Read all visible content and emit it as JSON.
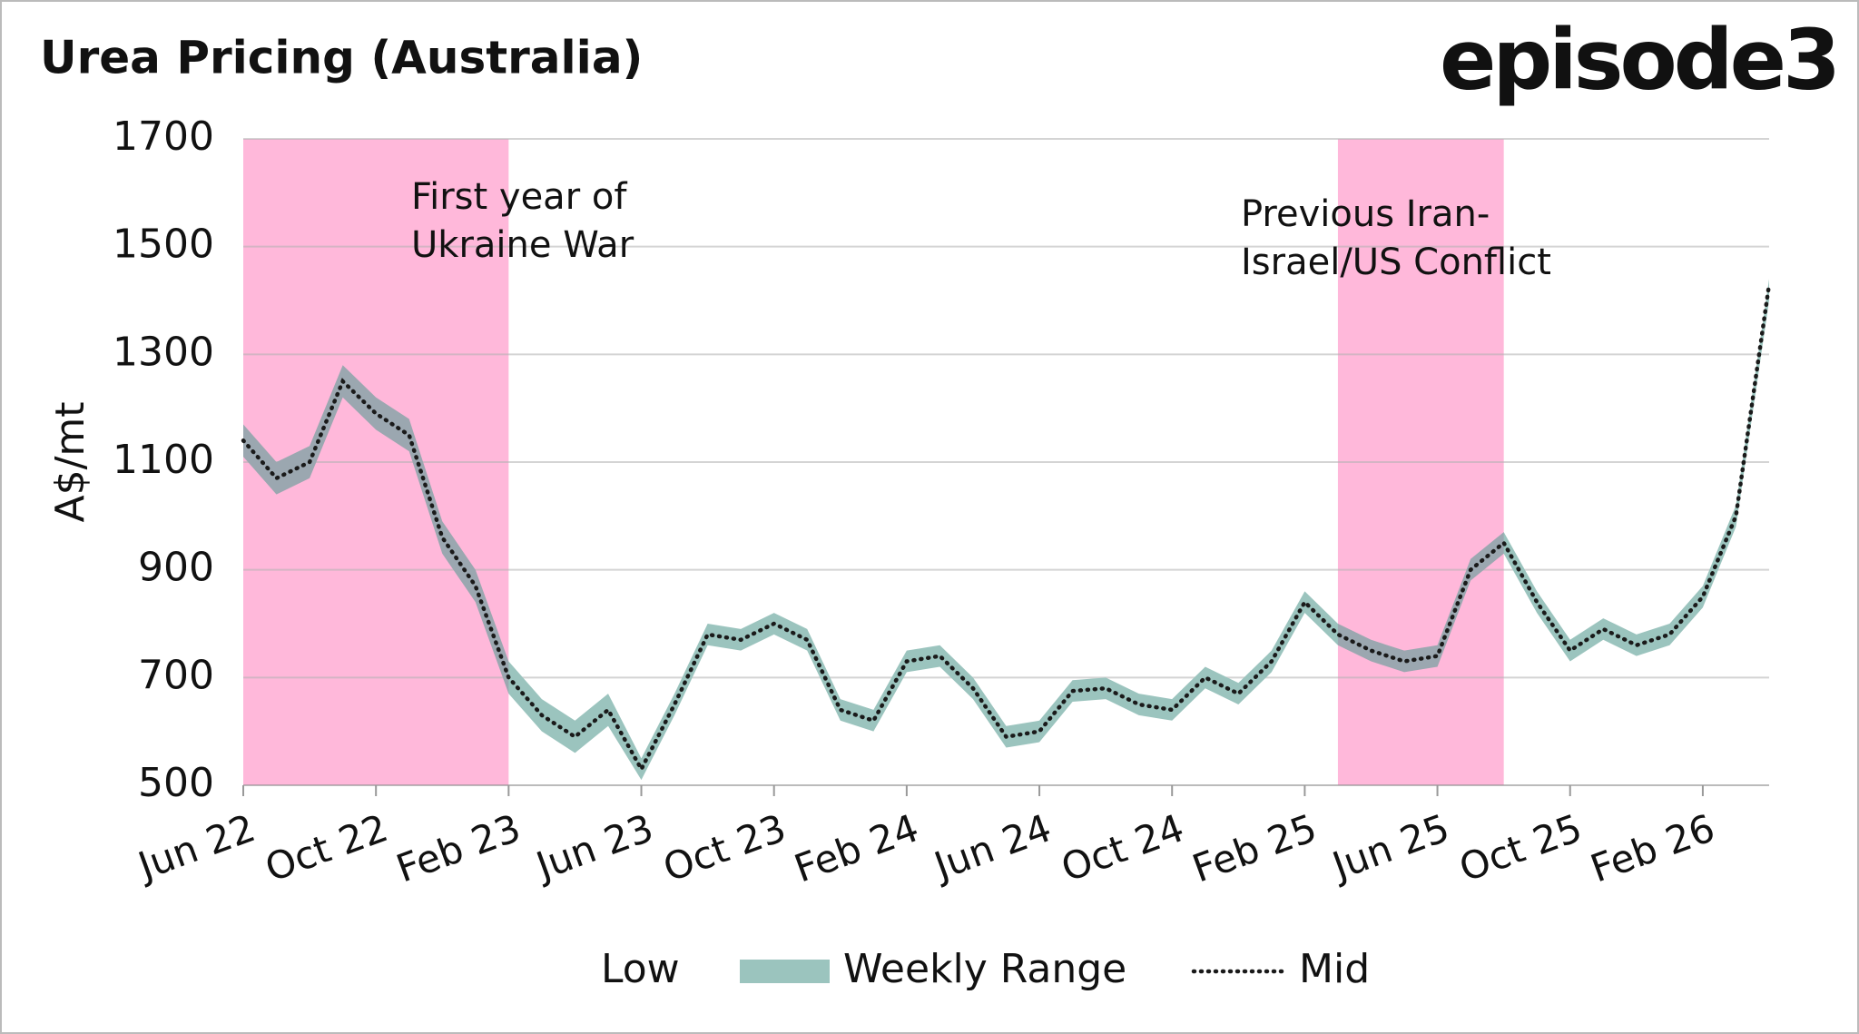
{
  "chart_data": {
    "type": "range-area",
    "title": "Urea Pricing (Australia)",
    "brand": "episode3",
    "y_label": "A$/mt",
    "x": [
      "Jun 22",
      "Jul 22",
      "Aug 22",
      "Sep 22",
      "Oct 22",
      "Nov 22",
      "Dec 22",
      "Jan 23",
      "Feb 23",
      "Mar 23",
      "Apr 23",
      "May 23",
      "Jun 23",
      "Jul 23",
      "Aug 23",
      "Sep 23",
      "Oct 23",
      "Nov 23",
      "Dec 23",
      "Jan 24",
      "Feb 24",
      "Mar 24",
      "Apr 24",
      "May 24",
      "Jun 24",
      "Jul 24",
      "Aug 24",
      "Sep 24",
      "Oct 24",
      "Nov 24",
      "Dec 24",
      "Jan 25",
      "Feb 25",
      "Mar 25",
      "Apr 25",
      "May 25",
      "Jun 25",
      "Jul 25",
      "Aug 25",
      "Sep 25",
      "Oct 25",
      "Nov 25",
      "Dec 25",
      "Jan 26",
      "Feb 26",
      "Mar 26",
      "Apr 26"
    ],
    "xticks": [
      "Jun 22",
      "Oct 22",
      "Feb 23",
      "Jun 23",
      "Oct 23",
      "Feb 24",
      "Jun 24",
      "Oct 24",
      "Feb 25",
      "Jun 25",
      "Oct 25",
      "Feb 26"
    ],
    "ylim": [
      500,
      1700
    ],
    "yticks": [
      500,
      700,
      900,
      1100,
      1300,
      1500,
      1700
    ],
    "grid": true,
    "series": [
      {
        "name": "Low",
        "values": [
          1110,
          1040,
          1070,
          1220,
          1160,
          1120,
          930,
          840,
          670,
          600,
          560,
          610,
          510,
          630,
          760,
          750,
          780,
          750,
          620,
          600,
          710,
          720,
          660,
          570,
          580,
          655,
          660,
          630,
          620,
          680,
          650,
          710,
          820,
          760,
          730,
          710,
          720,
          880,
          930,
          820,
          730,
          770,
          740,
          760,
          830,
          980,
          1400
        ]
      },
      {
        "name": "Weekly Range",
        "color": "#9bc4be",
        "values": [
          60,
          60,
          60,
          60,
          60,
          60,
          60,
          60,
          60,
          60,
          60,
          60,
          40,
          40,
          40,
          40,
          40,
          40,
          40,
          40,
          40,
          40,
          40,
          40,
          40,
          40,
          40,
          40,
          40,
          40,
          40,
          40,
          40,
          40,
          40,
          40,
          40,
          40,
          40,
          40,
          40,
          40,
          40,
          40,
          40,
          40,
          40
        ]
      },
      {
        "name": "Mid",
        "color": "#1a1a1a",
        "values": [
          1140,
          1070,
          1100,
          1250,
          1190,
          1150,
          960,
          870,
          700,
          630,
          590,
          640,
          530,
          650,
          780,
          770,
          800,
          770,
          640,
          620,
          730,
          740,
          680,
          590,
          600,
          675,
          680,
          650,
          640,
          700,
          670,
          730,
          840,
          780,
          750,
          730,
          740,
          900,
          950,
          840,
          750,
          790,
          760,
          780,
          850,
          1000,
          1430
        ]
      }
    ],
    "annotations": [
      {
        "start": "Jun 22",
        "end": "Feb 23",
        "color": "#ffd9ec",
        "lines": [
          "First year of",
          "Ukraine War"
        ]
      },
      {
        "start": "Mar 25",
        "end": "Aug 25",
        "color": "#ffd9ec",
        "lines": [
          "Previous Iran-",
          "Israel/US Conflict"
        ]
      }
    ]
  }
}
